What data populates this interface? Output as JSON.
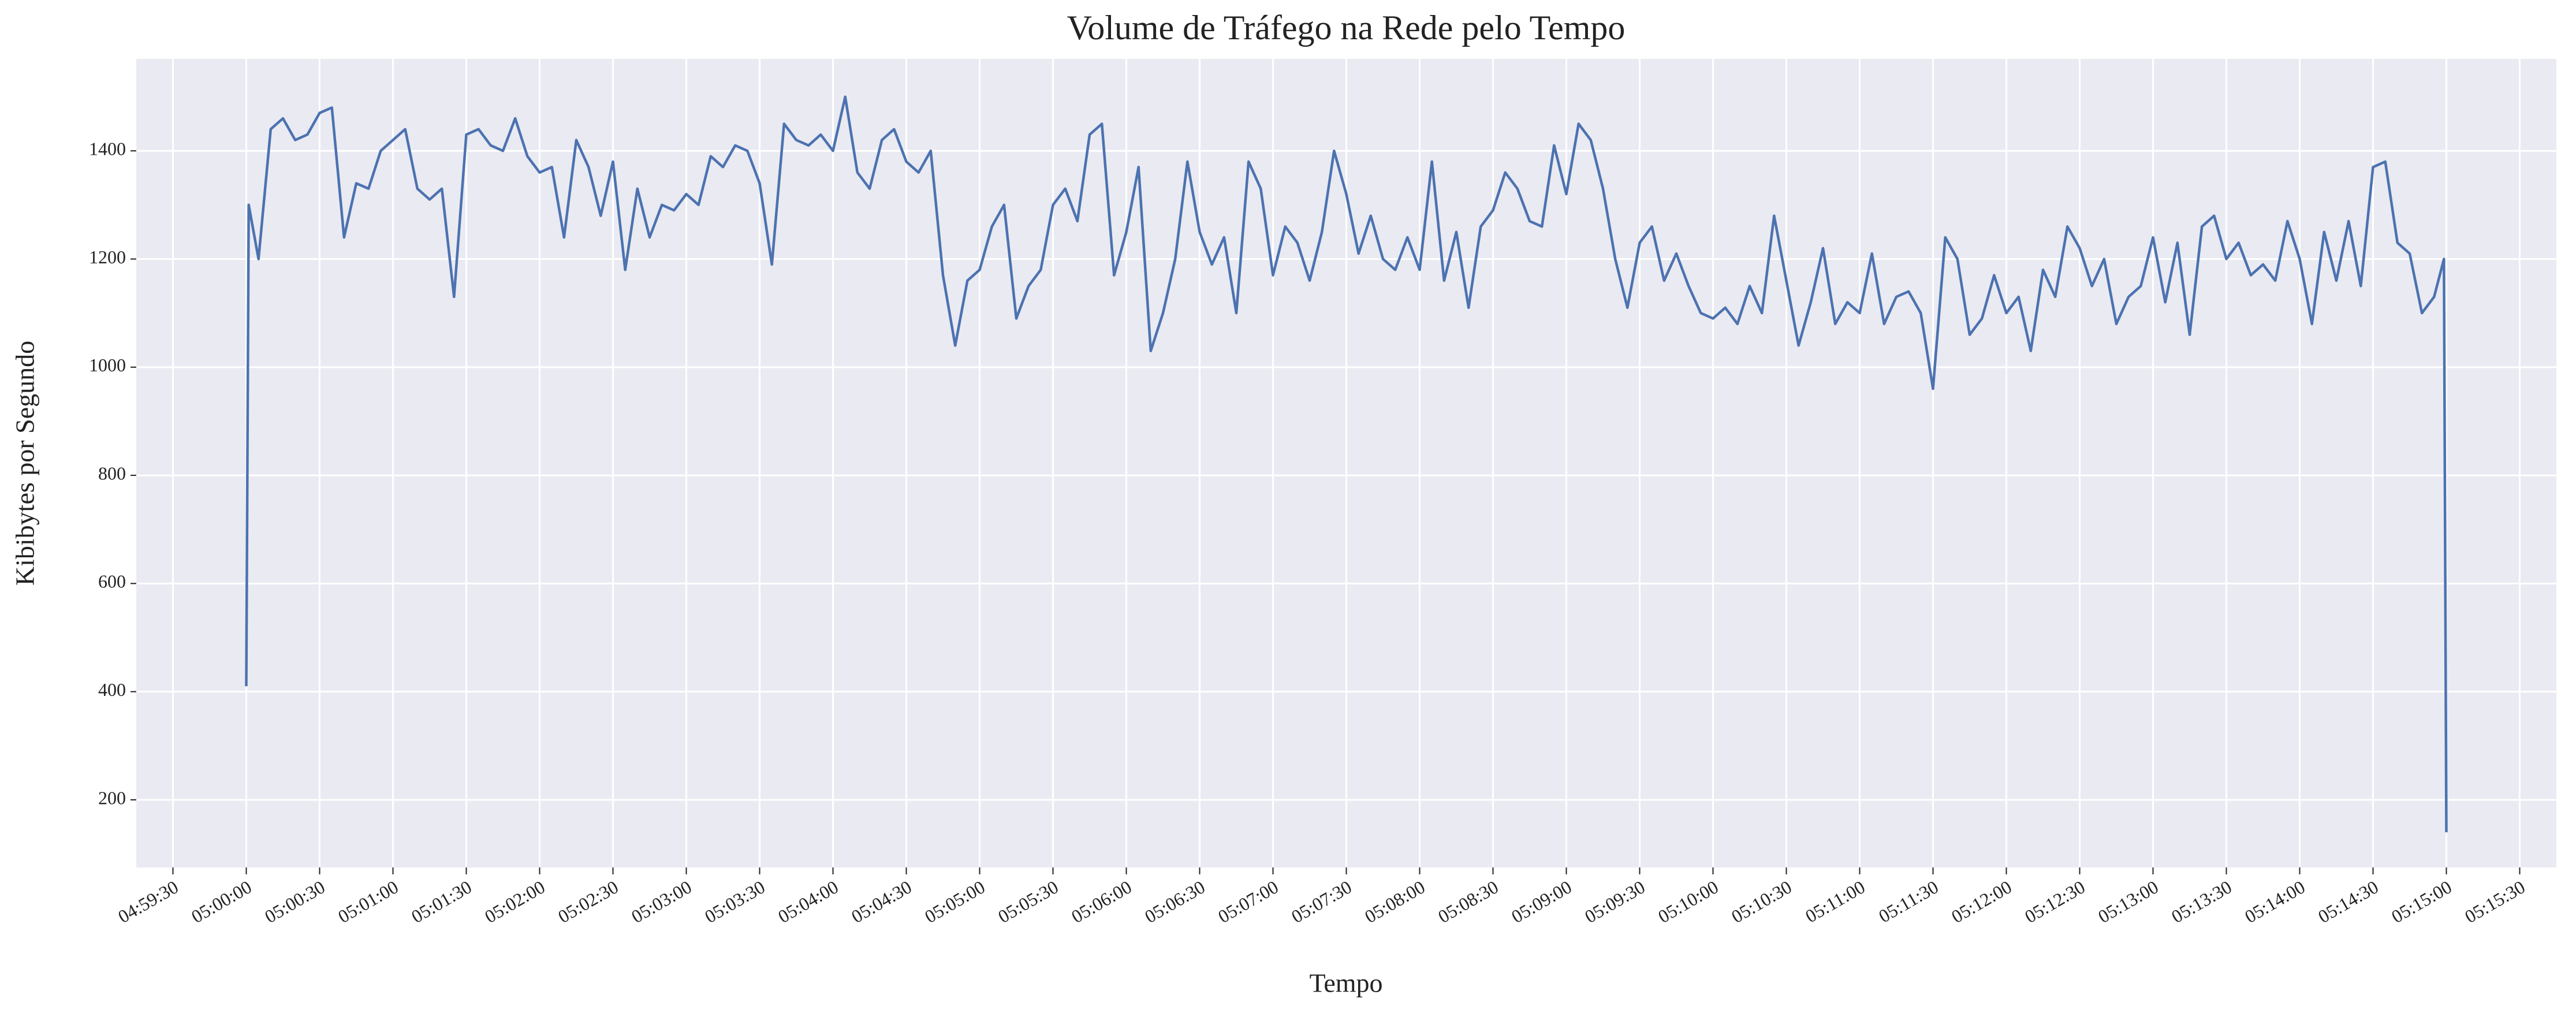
{
  "chart_data": {
    "type": "line",
    "title": "Volume de Tráfego na Rede pelo Tempo",
    "x_label": "Tempo",
    "y_label": "Kibibytes por Segundo",
    "color": "#4c72b0",
    "grid": true,
    "x": [
      "05:00:00",
      "05:00:01",
      "05:00:05",
      "05:00:10",
      "05:00:15",
      "05:00:20",
      "05:00:25",
      "05:00:30",
      "05:00:35",
      "05:00:40",
      "05:00:45",
      "05:00:50",
      "05:00:55",
      "05:01:00",
      "05:01:05",
      "05:01:10",
      "05:01:15",
      "05:01:20",
      "05:01:25",
      "05:01:30",
      "05:01:35",
      "05:01:40",
      "05:01:45",
      "05:01:50",
      "05:01:55",
      "05:02:00",
      "05:02:05",
      "05:02:10",
      "05:02:15",
      "05:02:20",
      "05:02:25",
      "05:02:30",
      "05:02:35",
      "05:02:40",
      "05:02:45",
      "05:02:50",
      "05:02:55",
      "05:03:00",
      "05:03:05",
      "05:03:10",
      "05:03:15",
      "05:03:20",
      "05:03:25",
      "05:03:30",
      "05:03:35",
      "05:03:40",
      "05:03:45",
      "05:03:50",
      "05:03:55",
      "05:04:00",
      "05:04:05",
      "05:04:10",
      "05:04:15",
      "05:04:20",
      "05:04:25",
      "05:04:30",
      "05:04:35",
      "05:04:40",
      "05:04:45",
      "05:04:50",
      "05:04:55",
      "05:05:00",
      "05:05:05",
      "05:05:10",
      "05:05:15",
      "05:05:20",
      "05:05:25",
      "05:05:30",
      "05:05:35",
      "05:05:40",
      "05:05:45",
      "05:05:50",
      "05:05:55",
      "05:06:00",
      "05:06:05",
      "05:06:10",
      "05:06:15",
      "05:06:20",
      "05:06:25",
      "05:06:30",
      "05:06:35",
      "05:06:40",
      "05:06:45",
      "05:06:50",
      "05:06:55",
      "05:07:00",
      "05:07:05",
      "05:07:10",
      "05:07:15",
      "05:07:20",
      "05:07:25",
      "05:07:30",
      "05:07:35",
      "05:07:40",
      "05:07:45",
      "05:07:50",
      "05:07:55",
      "05:08:00",
      "05:08:05",
      "05:08:10",
      "05:08:15",
      "05:08:20",
      "05:08:25",
      "05:08:30",
      "05:08:35",
      "05:08:40",
      "05:08:45",
      "05:08:50",
      "05:08:55",
      "05:09:00",
      "05:09:05",
      "05:09:10",
      "05:09:15",
      "05:09:20",
      "05:09:25",
      "05:09:30",
      "05:09:35",
      "05:09:40",
      "05:09:45",
      "05:09:50",
      "05:09:55",
      "05:10:00",
      "05:10:05",
      "05:10:10",
      "05:10:15",
      "05:10:20",
      "05:10:25",
      "05:10:30",
      "05:10:35",
      "05:10:40",
      "05:10:45",
      "05:10:50",
      "05:10:55",
      "05:11:00",
      "05:11:05",
      "05:11:10",
      "05:11:15",
      "05:11:20",
      "05:11:25",
      "05:11:30",
      "05:11:35",
      "05:11:40",
      "05:11:45",
      "05:11:50",
      "05:11:55",
      "05:12:00",
      "05:12:05",
      "05:12:10",
      "05:12:15",
      "05:12:20",
      "05:12:25",
      "05:12:30",
      "05:12:35",
      "05:12:40",
      "05:12:45",
      "05:12:50",
      "05:12:55",
      "05:13:00",
      "05:13:05",
      "05:13:10",
      "05:13:15",
      "05:13:20",
      "05:13:25",
      "05:13:30",
      "05:13:35",
      "05:13:40",
      "05:13:45",
      "05:13:50",
      "05:13:55",
      "05:14:00",
      "05:14:05",
      "05:14:10",
      "05:14:15",
      "05:14:20",
      "05:14:25",
      "05:14:30",
      "05:14:35",
      "05:14:40",
      "05:14:45",
      "05:14:50",
      "05:14:55",
      "05:14:59",
      "05:15:00"
    ],
    "values": [
      410,
      1300,
      1200,
      1440,
      1460,
      1420,
      1430,
      1470,
      1480,
      1240,
      1340,
      1330,
      1400,
      1420,
      1440,
      1330,
      1310,
      1330,
      1130,
      1430,
      1440,
      1410,
      1400,
      1460,
      1390,
      1360,
      1370,
      1240,
      1420,
      1370,
      1280,
      1380,
      1180,
      1330,
      1240,
      1300,
      1290,
      1320,
      1300,
      1390,
      1370,
      1410,
      1400,
      1340,
      1190,
      1450,
      1420,
      1410,
      1430,
      1400,
      1500,
      1360,
      1330,
      1420,
      1440,
      1380,
      1360,
      1400,
      1170,
      1040,
      1160,
      1180,
      1260,
      1300,
      1090,
      1150,
      1180,
      1300,
      1330,
      1270,
      1430,
      1450,
      1170,
      1250,
      1370,
      1030,
      1100,
      1200,
      1380,
      1250,
      1190,
      1240,
      1100,
      1380,
      1330,
      1170,
      1260,
      1230,
      1160,
      1250,
      1400,
      1320,
      1210,
      1280,
      1200,
      1180,
      1240,
      1180,
      1380,
      1160,
      1250,
      1110,
      1260,
      1290,
      1360,
      1330,
      1270,
      1260,
      1410,
      1320,
      1450,
      1420,
      1330,
      1200,
      1110,
      1230,
      1260,
      1160,
      1210,
      1150,
      1100,
      1090,
      1110,
      1080,
      1150,
      1100,
      1280,
      1160,
      1040,
      1120,
      1220,
      1080,
      1120,
      1100,
      1210,
      1080,
      1130,
      1140,
      1100,
      960,
      1240,
      1200,
      1060,
      1090,
      1170,
      1100,
      1130,
      1030,
      1180,
      1130,
      1260,
      1220,
      1150,
      1200,
      1080,
      1130,
      1150,
      1240,
      1120,
      1230,
      1060,
      1260,
      1280,
      1200,
      1230,
      1170,
      1190,
      1160,
      1270,
      1200,
      1080,
      1250,
      1160,
      1270,
      1150,
      1370,
      1380,
      1230,
      1210,
      1100,
      1130,
      1200,
      140
    ],
    "xlim": [
      "04:59:15",
      "05:15:45"
    ],
    "xticks": [
      "04:59:30",
      "05:00:00",
      "05:00:30",
      "05:01:00",
      "05:01:30",
      "05:02:00",
      "05:02:30",
      "05:03:00",
      "05:03:30",
      "05:04:00",
      "05:04:30",
      "05:05:00",
      "05:05:30",
      "05:06:00",
      "05:06:30",
      "05:07:00",
      "05:07:30",
      "05:08:00",
      "05:08:30",
      "05:09:00",
      "05:09:30",
      "05:10:00",
      "05:10:30",
      "05:11:00",
      "05:11:30",
      "05:12:00",
      "05:12:30",
      "05:13:00",
      "05:13:30",
      "05:14:00",
      "05:14:30",
      "05:15:00",
      "05:15:30"
    ],
    "ylim": [
      75,
      1570
    ],
    "yticks": [
      200,
      400,
      600,
      800,
      1000,
      1200,
      1400
    ]
  }
}
